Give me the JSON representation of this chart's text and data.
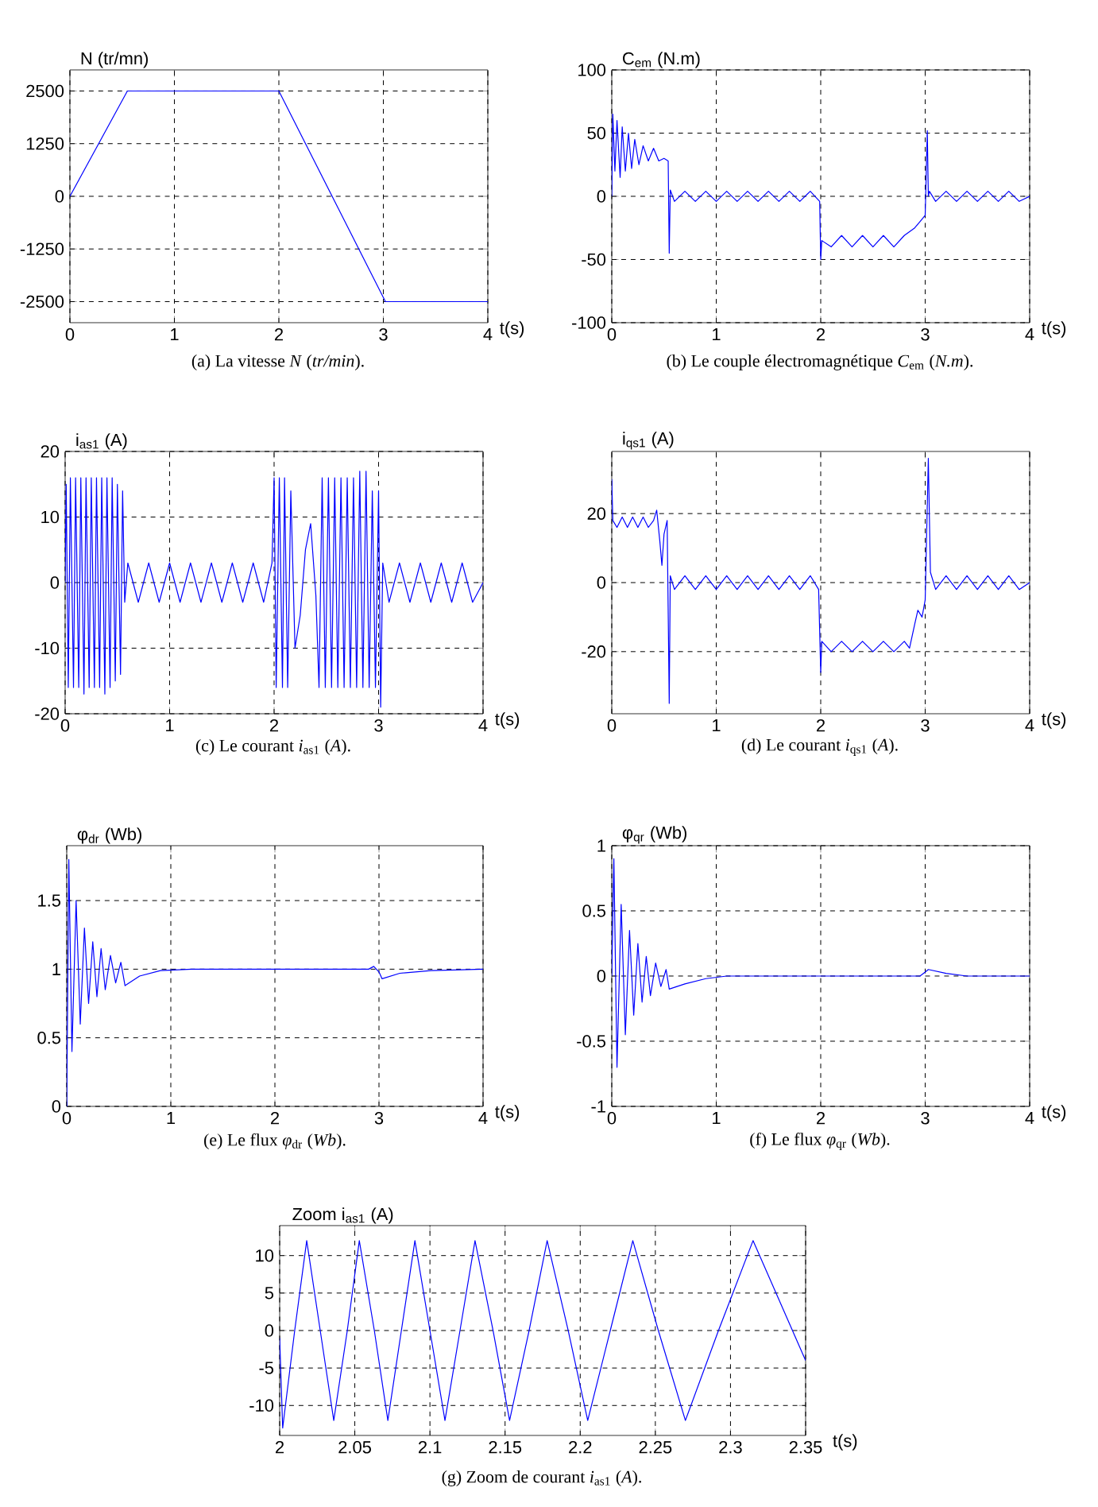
{
  "chart_data": [
    {
      "type": "line",
      "ylabel": "N (tr/mn)",
      "xlabel": "t(s)",
      "annotations": [
        "(a) La vitesse *N* (*tr/min*)."
      ],
      "color": "#0000ff",
      "grid": true,
      "xlim": [
        0,
        4
      ],
      "ylim": [
        -3000,
        3000
      ],
      "xticks": [
        0,
        1,
        2,
        3,
        4
      ],
      "yticks": [
        -2500,
        -1250,
        0,
        1250,
        2500
      ],
      "x": [
        0,
        0.55,
        2,
        3.02,
        4
      ],
      "values": [
        0,
        2500,
        2500,
        -2500,
        -2500
      ]
    },
    {
      "type": "line",
      "ylabel": "C$_{em}$ (N.m)",
      "xlabel": "t(s)",
      "annotations": [
        "(b) Le couple électromagnétique *C*$_{em}$ (*N.m*)."
      ],
      "color": "#0000ff",
      "grid": true,
      "xlim": [
        0,
        4
      ],
      "ylim": [
        -100,
        100
      ],
      "xticks": [
        0,
        1,
        2,
        3,
        4
      ],
      "yticks": [
        -100,
        -50,
        0,
        50,
        100
      ],
      "x": [
        0,
        0.01,
        0.03,
        0.05,
        0.08,
        0.1,
        0.13,
        0.16,
        0.19,
        0.22,
        0.26,
        0.3,
        0.35,
        0.4,
        0.45,
        0.5,
        0.54,
        0.55,
        0.56,
        0.6,
        0.7,
        0.8,
        0.9,
        1.0,
        1.1,
        1.2,
        1.3,
        1.4,
        1.5,
        1.6,
        1.7,
        1.8,
        1.9,
        1.99,
        2.0,
        2.01,
        2.1,
        2.2,
        2.3,
        2.4,
        2.5,
        2.6,
        2.7,
        2.8,
        2.85,
        2.9,
        2.95,
        3.0,
        3.02,
        3.03,
        3.04,
        3.1,
        3.2,
        3.3,
        3.4,
        3.5,
        3.6,
        3.7,
        3.8,
        3.9,
        4.0
      ],
      "values": [
        0,
        65,
        20,
        60,
        15,
        55,
        20,
        50,
        22,
        45,
        25,
        40,
        28,
        38,
        28,
        30,
        28,
        -45,
        5,
        -4,
        4,
        -4,
        4,
        -4,
        4,
        -4,
        4,
        -4,
        4,
        -4,
        4,
        -4,
        4,
        -4,
        -50,
        -35,
        -40,
        -31,
        -40,
        -31,
        -40,
        -31,
        -40,
        -31,
        -28,
        -25,
        -20,
        -15,
        52,
        0,
        4,
        -4,
        4,
        -4,
        4,
        -4,
        4,
        -4,
        4,
        -4,
        0
      ]
    },
    {
      "type": "line",
      "ylabel": "i$_{as1}$ (A)",
      "xlabel": "t(s)",
      "annotations": [
        "(c) Le courant *i*$_{as1}$ (*A*)."
      ],
      "color": "#0000ff",
      "grid": true,
      "xlim": [
        0,
        4
      ],
      "ylim": [
        -20,
        20
      ],
      "xticks": [
        0,
        1,
        2,
        3,
        4
      ],
      "yticks": [
        -20,
        -10,
        0,
        10,
        20
      ],
      "x": [
        0,
        0.01,
        0.03,
        0.05,
        0.08,
        0.1,
        0.13,
        0.15,
        0.18,
        0.2,
        0.23,
        0.25,
        0.28,
        0.3,
        0.33,
        0.35,
        0.38,
        0.4,
        0.43,
        0.45,
        0.48,
        0.5,
        0.53,
        0.55,
        0.57,
        0.6,
        0.7,
        0.8,
        0.9,
        1.0,
        1.1,
        1.2,
        1.3,
        1.4,
        1.5,
        1.6,
        1.7,
        1.8,
        1.9,
        1.98,
        2.0,
        2.02,
        2.05,
        2.08,
        2.1,
        2.13,
        2.16,
        2.2,
        2.25,
        2.3,
        2.35,
        2.4,
        2.43,
        2.46,
        2.49,
        2.52,
        2.55,
        2.58,
        2.61,
        2.64,
        2.67,
        2.7,
        2.73,
        2.76,
        2.79,
        2.82,
        2.85,
        2.88,
        2.91,
        2.94,
        2.97,
        3.0,
        3.02,
        3.04,
        3.1,
        3.2,
        3.3,
        3.4,
        3.5,
        3.6,
        3.7,
        3.8,
        3.9,
        4.0
      ],
      "values": [
        0,
        15,
        -16,
        16,
        -16,
        16,
        -16,
        16,
        -17,
        16,
        -16,
        16,
        -16,
        16,
        -16,
        16,
        -17,
        16,
        -16,
        16,
        -15,
        15,
        -14,
        14,
        -3,
        3,
        -3,
        3,
        -3,
        3,
        -3,
        3,
        -3,
        3,
        -3,
        3,
        -3,
        3,
        -3,
        3,
        16,
        -16,
        16,
        -16,
        16,
        -16,
        14,
        -10,
        -5,
        5,
        9,
        -2,
        -16,
        16,
        -16,
        16,
        -16,
        16,
        -16,
        16,
        -16,
        16,
        -16,
        16,
        -16,
        17,
        -16,
        17,
        -16,
        14,
        -16,
        14,
        -19,
        3,
        -3,
        3,
        -3,
        3,
        -3,
        3,
        -3,
        3,
        -3,
        0
      ]
    },
    {
      "type": "line",
      "ylabel": "i$_{qs1}$ (A)",
      "xlabel": "t(s)",
      "annotations": [
        "(d) Le courant *i*$_{qs1}$ (*A*)."
      ],
      "color": "#0000ff",
      "grid": true,
      "xlim": [
        0,
        4
      ],
      "ylim": [
        -38,
        38
      ],
      "xticks": [
        0,
        1,
        2,
        3,
        4
      ],
      "yticks": [
        -20,
        0,
        20
      ],
      "x": [
        0,
        0.01,
        0.05,
        0.1,
        0.15,
        0.2,
        0.25,
        0.3,
        0.35,
        0.4,
        0.43,
        0.46,
        0.48,
        0.5,
        0.53,
        0.55,
        0.56,
        0.6,
        0.7,
        0.8,
        0.9,
        1.0,
        1.1,
        1.2,
        1.3,
        1.4,
        1.5,
        1.6,
        1.7,
        1.8,
        1.9,
        1.98,
        2.0,
        2.01,
        2.1,
        2.2,
        2.3,
        2.4,
        2.5,
        2.6,
        2.7,
        2.8,
        2.85,
        2.9,
        2.93,
        2.97,
        3.0,
        3.03,
        3.05,
        3.1,
        3.2,
        3.3,
        3.4,
        3.5,
        3.6,
        3.7,
        3.8,
        3.9,
        4.0
      ],
      "values": [
        30,
        18,
        16,
        19,
        16,
        19,
        16,
        19,
        16,
        18,
        21,
        12,
        5,
        14,
        18,
        -35,
        2,
        -2,
        2,
        -2,
        2,
        -2,
        2,
        -2,
        2,
        -2,
        2,
        -2,
        2,
        -2,
        2,
        -2,
        -26,
        -17,
        -20,
        -17,
        -20,
        -17,
        -20,
        -17,
        -20,
        -17,
        -19,
        -12,
        -8,
        -10,
        -5,
        36,
        3,
        -2,
        2,
        -2,
        2,
        -2,
        2,
        -2,
        2,
        -2,
        0
      ]
    },
    {
      "type": "line",
      "ylabel": "φ$_{dr}$ (Wb)",
      "xlabel": "t(s)",
      "annotations": [
        "(e) Le flux *φ*$_{dr}$ (*Wb*)."
      ],
      "color": "#0000ff",
      "grid": true,
      "xlim": [
        0,
        4
      ],
      "ylim": [
        0,
        1.9
      ],
      "xticks": [
        0,
        1,
        2,
        3,
        4
      ],
      "yticks": [
        0,
        0.5,
        1,
        1.5
      ],
      "x": [
        0,
        0.02,
        0.05,
        0.09,
        0.13,
        0.17,
        0.21,
        0.25,
        0.29,
        0.33,
        0.37,
        0.42,
        0.47,
        0.52,
        0.56,
        0.7,
        0.9,
        1.2,
        2.9,
        2.95,
        3.0,
        3.03,
        3.2,
        3.5,
        4
      ],
      "values": [
        0,
        1.8,
        0.4,
        1.5,
        0.6,
        1.3,
        0.75,
        1.2,
        0.8,
        1.15,
        0.85,
        1.1,
        0.9,
        1.05,
        0.88,
        0.95,
        0.99,
        1,
        1,
        1.02,
        0.98,
        0.93,
        0.97,
        0.99,
        1
      ]
    },
    {
      "type": "line",
      "ylabel": "φ$_{qr}$ (Wb)",
      "xlabel": "t(s)",
      "annotations": [
        "(f) Le flux *φ*$_{qr}$ (*Wb*)."
      ],
      "color": "#0000ff",
      "grid": true,
      "xlim": [
        0,
        4
      ],
      "ylim": [
        -1,
        1
      ],
      "xticks": [
        0,
        1,
        2,
        3,
        4
      ],
      "yticks": [
        -1,
        -0.5,
        0,
        0.5,
        1
      ],
      "x": [
        0,
        0.02,
        0.05,
        0.09,
        0.13,
        0.17,
        0.21,
        0.25,
        0.29,
        0.33,
        0.37,
        0.42,
        0.47,
        0.52,
        0.55,
        0.7,
        0.9,
        1.1,
        2.95,
        3.0,
        3.03,
        3.2,
        3.4,
        4
      ],
      "values": [
        0,
        0.9,
        -0.7,
        0.55,
        -0.45,
        0.35,
        -0.3,
        0.25,
        -0.2,
        0.15,
        -0.15,
        0.1,
        -0.08,
        0.05,
        -0.1,
        -0.06,
        -0.02,
        0,
        0,
        0.03,
        0.05,
        0.02,
        0,
        0
      ]
    },
    {
      "type": "line",
      "ylabel": "Zoom i$_{as1}$ (A)",
      "xlabel": "t(s)",
      "annotations": [
        "(g) Zoom de courant *i*$_{as1}$ (*A*)."
      ],
      "color": "#0000ff",
      "grid": true,
      "xlim": [
        2,
        2.35
      ],
      "ylim": [
        -14,
        14
      ],
      "xticks": [
        2,
        2.05,
        2.1,
        2.15,
        2.2,
        2.25,
        2.3,
        2.35
      ],
      "yticks": [
        -10,
        -5,
        0,
        5,
        10
      ],
      "x": [
        2,
        2.002,
        2.01,
        2.018,
        2.027,
        2.036,
        2.045,
        2.053,
        2.063,
        2.072,
        2.081,
        2.09,
        2.1,
        2.11,
        2.12,
        2.13,
        2.142,
        2.153,
        2.166,
        2.178,
        2.192,
        2.205,
        2.22,
        2.235,
        2.252,
        2.27,
        2.292,
        2.315,
        2.35
      ],
      "values": [
        -1,
        -13,
        0,
        12,
        0,
        -12,
        0,
        12,
        0,
        -12,
        0,
        12,
        0,
        -12,
        0,
        12,
        0,
        -12,
        0,
        12,
        0,
        -12,
        0,
        12,
        0,
        -12,
        0,
        12,
        -4
      ]
    }
  ]
}
